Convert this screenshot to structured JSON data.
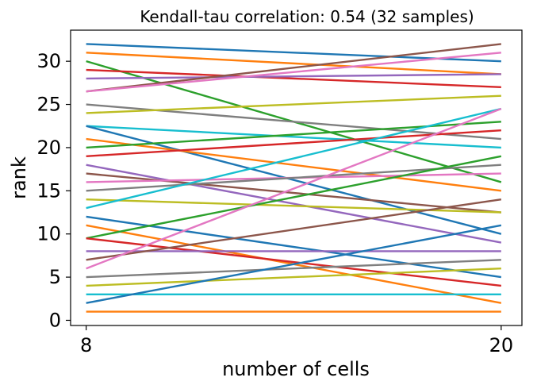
{
  "chart_data": {
    "type": "line",
    "title": "Kendall-tau correlation: 0.54 (32 samples)",
    "xlabel": "number of cells",
    "ylabel": "rank",
    "x": [
      8,
      20
    ],
    "xticks": [
      8,
      20
    ],
    "yticks": [
      0,
      5,
      10,
      15,
      20,
      25,
      30
    ],
    "xlim": [
      7.55,
      20.6
    ],
    "ylim": [
      -0.6,
      33.6
    ],
    "grid": false,
    "legend": "none",
    "colors": [
      "#1f77b4",
      "#ff7f0e",
      "#2ca02c",
      "#d62728",
      "#9467bd",
      "#8c564b",
      "#e377c2",
      "#7f7f7f",
      "#bcbd22",
      "#17becf"
    ],
    "series": [
      {
        "values": [
          32,
          30
        ]
      },
      {
        "values": [
          31,
          28.5
        ]
      },
      {
        "values": [
          30,
          16
        ]
      },
      {
        "values": [
          29,
          27
        ]
      },
      {
        "values": [
          28,
          28.5
        ]
      },
      {
        "values": [
          26.5,
          32
        ]
      },
      {
        "values": [
          26.5,
          31
        ]
      },
      {
        "values": [
          25,
          21
        ]
      },
      {
        "values": [
          24,
          26
        ]
      },
      {
        "values": [
          22.5,
          20
        ]
      },
      {
        "values": [
          22.5,
          10
        ]
      },
      {
        "values": [
          21,
          15
        ]
      },
      {
        "values": [
          20,
          23
        ]
      },
      {
        "values": [
          19,
          22
        ]
      },
      {
        "values": [
          18,
          9
        ]
      },
      {
        "values": [
          17,
          12.5
        ]
      },
      {
        "values": [
          16,
          17
        ]
      },
      {
        "values": [
          15,
          18
        ]
      },
      {
        "values": [
          14,
          12.5
        ]
      },
      {
        "values": [
          13,
          24.5
        ]
      },
      {
        "values": [
          12,
          5
        ]
      },
      {
        "values": [
          11,
          2
        ]
      },
      {
        "values": [
          9.5,
          19
        ]
      },
      {
        "values": [
          9.5,
          4
        ]
      },
      {
        "values": [
          8,
          8
        ]
      },
      {
        "values": [
          7,
          14
        ]
      },
      {
        "values": [
          6,
          24.5
        ]
      },
      {
        "values": [
          5,
          7
        ]
      },
      {
        "values": [
          4,
          6
        ]
      },
      {
        "values": [
          3,
          3
        ]
      },
      {
        "values": [
          2,
          11
        ]
      },
      {
        "values": [
          1,
          1
        ]
      }
    ]
  }
}
